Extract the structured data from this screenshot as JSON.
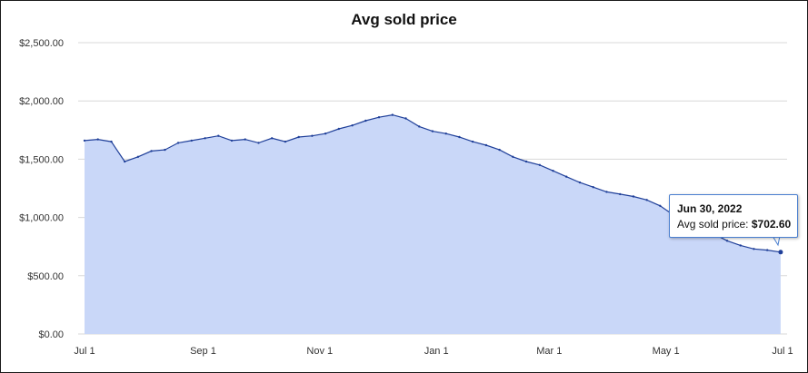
{
  "chart_data": {
    "type": "area",
    "title": "Avg sold price",
    "xlabel": "",
    "ylabel": "",
    "ylim": [
      0,
      2500
    ],
    "yticks": [
      {
        "value": 0,
        "label": "$0.00"
      },
      {
        "value": 500,
        "label": "$500.00"
      },
      {
        "value": 1000,
        "label": "$1,000.00"
      },
      {
        "value": 1500,
        "label": "$1,500.00"
      },
      {
        "value": 2000,
        "label": "$2,000.00"
      },
      {
        "value": 2500,
        "label": "$2,500.00"
      }
    ],
    "xlim": [
      "2021-07-01",
      "2022-07-01"
    ],
    "xticks": [
      {
        "date": "2021-07-01",
        "label": "Jul 1"
      },
      {
        "date": "2021-09-01",
        "label": "Sep 1"
      },
      {
        "date": "2021-11-01",
        "label": "Nov 1"
      },
      {
        "date": "2022-01-01",
        "label": "Jan 1"
      },
      {
        "date": "2022-03-01",
        "label": "Mar 1"
      },
      {
        "date": "2022-05-01",
        "label": "May 1"
      },
      {
        "date": "2022-07-01",
        "label": "Jul 1"
      }
    ],
    "grid": "horizontal",
    "colors": {
      "line": "#1f3f99",
      "fill": "#c9d7f8",
      "grid": "#d8d8d8",
      "tooltip_border": "#4a7fd0"
    },
    "series": [
      {
        "x": [
          "2021-07-01",
          "2021-07-08",
          "2021-07-15",
          "2021-07-22",
          "2021-07-29",
          "2021-08-05",
          "2021-08-12",
          "2021-08-19",
          "2021-08-26",
          "2021-09-02",
          "2021-09-09",
          "2021-09-16",
          "2021-09-23",
          "2021-09-30",
          "2021-10-07",
          "2021-10-14",
          "2021-10-21",
          "2021-10-28",
          "2021-11-04",
          "2021-11-11",
          "2021-11-18",
          "2021-11-25",
          "2021-12-02",
          "2021-12-09",
          "2021-12-16",
          "2021-12-23",
          "2021-12-30",
          "2022-01-06",
          "2022-01-13",
          "2022-01-20",
          "2022-01-27",
          "2022-02-03",
          "2022-02-10",
          "2022-02-17",
          "2022-02-24",
          "2022-03-03",
          "2022-03-10",
          "2022-03-17",
          "2022-03-24",
          "2022-03-31",
          "2022-04-07",
          "2022-04-14",
          "2022-04-21",
          "2022-04-28",
          "2022-05-05",
          "2022-05-12",
          "2022-05-19",
          "2022-05-26",
          "2022-06-02",
          "2022-06-09",
          "2022-06-16",
          "2022-06-23",
          "2022-06-30"
        ],
        "values": [
          1660,
          1670,
          1650,
          1480,
          1520,
          1570,
          1580,
          1640,
          1660,
          1680,
          1700,
          1660,
          1670,
          1640,
          1680,
          1650,
          1690,
          1700,
          1720,
          1760,
          1790,
          1830,
          1860,
          1880,
          1850,
          1780,
          1740,
          1720,
          1690,
          1650,
          1620,
          1580,
          1520,
          1480,
          1450,
          1400,
          1350,
          1300,
          1260,
          1220,
          1200,
          1180,
          1150,
          1100,
          1020,
          980,
          900,
          860,
          800,
          760,
          730,
          720,
          702.6
        ]
      }
    ],
    "tooltip": {
      "date": "Jun 30, 2022",
      "label": "Avg sold price:",
      "value": "$702.60"
    }
  }
}
